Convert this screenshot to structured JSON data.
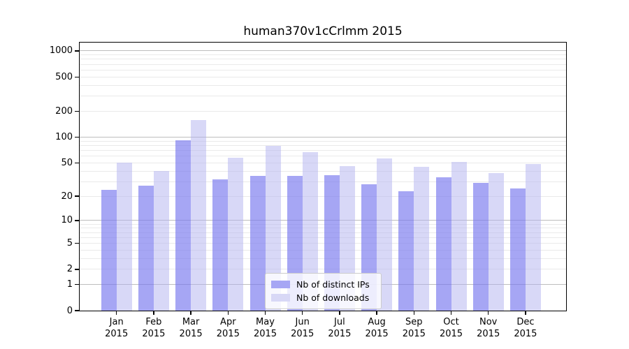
{
  "chart_data": {
    "type": "bar",
    "title": "human370v1cCrlmm 2015",
    "categories": [
      "Jan",
      "Feb",
      "Mar",
      "Apr",
      "May",
      "Jun",
      "Jul",
      "Aug",
      "Sep",
      "Oct",
      "Nov",
      "Dec"
    ],
    "year_label": "2015",
    "series": [
      {
        "name": "Nb of distinct IPs",
        "values": [
          24,
          27,
          91,
          32,
          35,
          35,
          36,
          28,
          23,
          34,
          29,
          25
        ],
        "fill": "rgba(118,118,238,0.65)",
        "swatch": "#a6a6f4"
      },
      {
        "name": "Nb of downloads",
        "values": [
          50,
          40,
          157,
          57,
          79,
          67,
          46,
          56,
          45,
          51,
          38,
          48
        ],
        "fill": "rgba(177,177,240,0.5)",
        "swatch": "#d8d8f6"
      }
    ],
    "yscale": "log1p",
    "y_ticks": [
      0,
      1,
      2,
      5,
      10,
      20,
      50,
      100,
      200,
      500,
      1000
    ],
    "ylim": [
      0,
      1270
    ],
    "xlabel": "",
    "ylabel": "",
    "grid": "horizontal, log minor + major lines",
    "legend_position": "lower-center",
    "colors": {
      "grid_major": "#bdbdbd",
      "grid_minor": "#eaeaea",
      "axis": "#000000",
      "background": "#ffffff"
    }
  }
}
